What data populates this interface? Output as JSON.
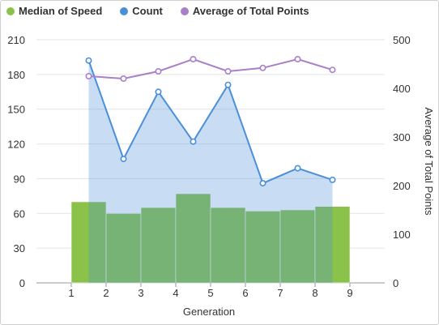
{
  "chart_data": {
    "type": "bar",
    "xlabel": "Generation",
    "y2label": "Average of Total Points",
    "x_ticks": [
      1,
      2,
      3,
      4,
      5,
      6,
      7,
      8,
      9
    ],
    "y_left": {
      "min": 0,
      "max": 210,
      "ticks": [
        0,
        30,
        60,
        90,
        120,
        150,
        180,
        210
      ]
    },
    "y_right": {
      "min": 0,
      "max": 500,
      "ticks": [
        0,
        100,
        200,
        300,
        400,
        500
      ]
    },
    "grid": true,
    "legend_position": "top-left",
    "categories": [
      1,
      2,
      3,
      4,
      5,
      6,
      7,
      8
    ],
    "series": [
      {
        "name": "Median of Speed",
        "type": "bar",
        "axis": "left",
        "color": "#8bc34a",
        "values": [
          70,
          60,
          65,
          77,
          65,
          62,
          63,
          66
        ]
      },
      {
        "name": "Count",
        "type": "area",
        "axis": "left",
        "color": "#4a90d9",
        "values": [
          192,
          107,
          165,
          122,
          171,
          86,
          99,
          89
        ]
      },
      {
        "name": "Average of Total Points",
        "type": "line",
        "axis": "right",
        "color": "#a980c8",
        "values": [
          425,
          420,
          435,
          460,
          435,
          442,
          460,
          438
        ]
      }
    ]
  }
}
